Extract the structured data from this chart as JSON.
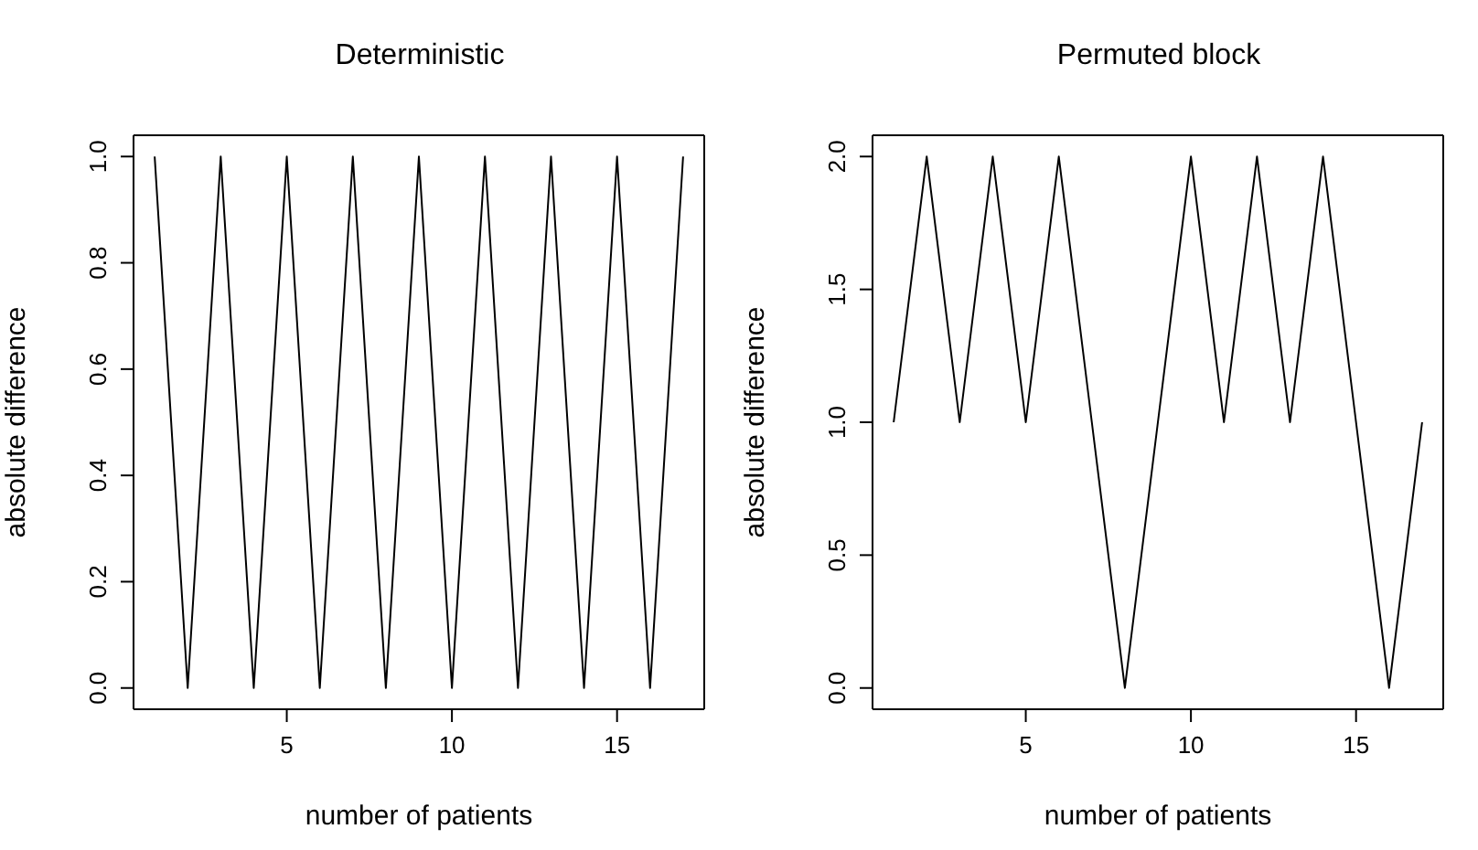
{
  "chart_data": [
    {
      "type": "line",
      "title": "Deterministic",
      "xlabel": "number of patients",
      "ylabel": "absolute difference",
      "marker": "none",
      "line_style": "solid",
      "color": "#000000",
      "x": [
        1,
        2,
        3,
        4,
        5,
        6,
        7,
        8,
        9,
        10,
        11,
        12,
        13,
        14,
        15,
        16,
        17
      ],
      "values": [
        1,
        0,
        1,
        0,
        1,
        0,
        1,
        0,
        1,
        0,
        1,
        0,
        1,
        0,
        1,
        0,
        1
      ],
      "xlim": [
        0.36,
        17.64
      ],
      "xticks": [
        5,
        10,
        15
      ],
      "ylim": [
        -0.04,
        1.04
      ],
      "yticks": [
        {
          "value": 0,
          "label": "0.0"
        },
        {
          "value": 0.2,
          "label": "0.2"
        },
        {
          "value": 0.4,
          "label": "0.4"
        },
        {
          "value": 0.6,
          "label": "0.6"
        },
        {
          "value": 0.8,
          "label": "0.8"
        },
        {
          "value": 1,
          "label": "1.0"
        }
      ]
    },
    {
      "type": "line",
      "title": "Permuted block",
      "xlabel": "number of patients",
      "ylabel": "absolute difference",
      "marker": "none",
      "line_style": "solid",
      "color": "#000000",
      "x": [
        1,
        2,
        3,
        4,
        5,
        6,
        7,
        8,
        9,
        10,
        11,
        12,
        13,
        14,
        15,
        16,
        17
      ],
      "values": [
        1,
        2,
        1,
        2,
        1,
        2,
        1,
        0,
        1,
        2,
        1,
        2,
        1,
        2,
        1,
        0,
        1
      ],
      "xlim": [
        0.36,
        17.64
      ],
      "xticks": [
        5,
        10,
        15
      ],
      "ylim": [
        -0.08,
        2.08
      ],
      "yticks": [
        {
          "value": 0,
          "label": "0.0"
        },
        {
          "value": 0.5,
          "label": "0.5"
        },
        {
          "value": 1,
          "label": "1.0"
        },
        {
          "value": 1.5,
          "label": "1.5"
        },
        {
          "value": 2,
          "label": "2.0"
        }
      ]
    }
  ]
}
